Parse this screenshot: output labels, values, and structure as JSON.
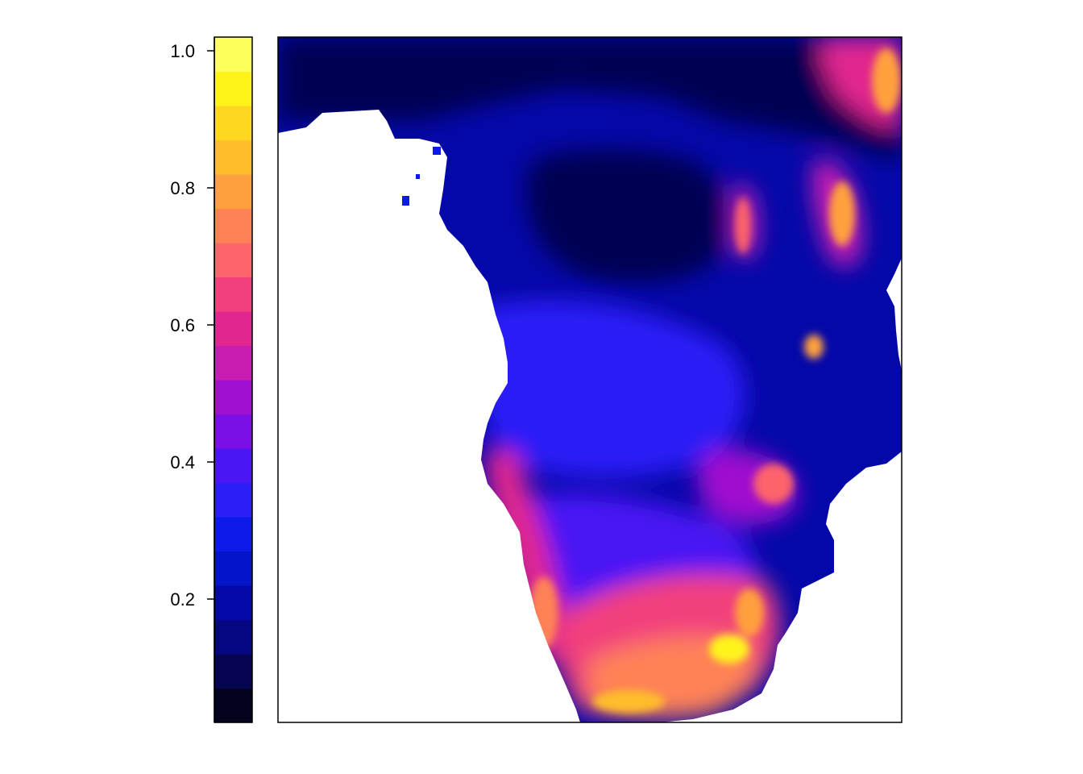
{
  "chart_data": {
    "type": "heatmap",
    "title": "",
    "xlabel": "",
    "ylabel": "",
    "legend": {
      "position": "left",
      "range": [
        0.02,
        1.02
      ],
      "breaks": [
        0.02,
        0.07,
        0.12,
        0.17,
        0.22,
        0.27,
        0.32,
        0.37,
        0.42,
        0.47,
        0.52,
        0.57,
        0.62,
        0.67,
        0.72,
        0.77,
        0.82,
        0.87,
        0.92,
        0.97,
        1.02
      ],
      "colors": [
        "#04031f",
        "#050552",
        "#040781",
        "#0508a8",
        "#0414c8",
        "#0b19e9",
        "#2b1ef6",
        "#4a17f4",
        "#7b10e6",
        "#a010cf",
        "#c91cb3",
        "#e2268f",
        "#f23f7d",
        "#fd646b",
        "#ff8256",
        "#ffa03e",
        "#ffbd2b",
        "#ffd720",
        "#fff31a",
        "#ffff5a"
      ],
      "ticks": [
        {
          "value": 0.2,
          "label": "0.2"
        },
        {
          "value": 0.4,
          "label": "0.4"
        },
        {
          "value": 0.6,
          "label": "0.6"
        },
        {
          "value": 0.8,
          "label": "0.8"
        },
        {
          "value": 1.0,
          "label": "1.0"
        }
      ]
    },
    "map_region": "southern-africa",
    "no_data_color": "#ffffff",
    "region_values": {
      "north_equatorial_band": 0.1,
      "congo_basin": 0.1,
      "central_plateau": 0.3,
      "east_africa": 0.3,
      "rift_highlands": 0.7,
      "namibia_coast": 0.6,
      "kalahari": 0.4,
      "south_africa_interior": 0.7,
      "highveld_peak": 0.95
    }
  }
}
